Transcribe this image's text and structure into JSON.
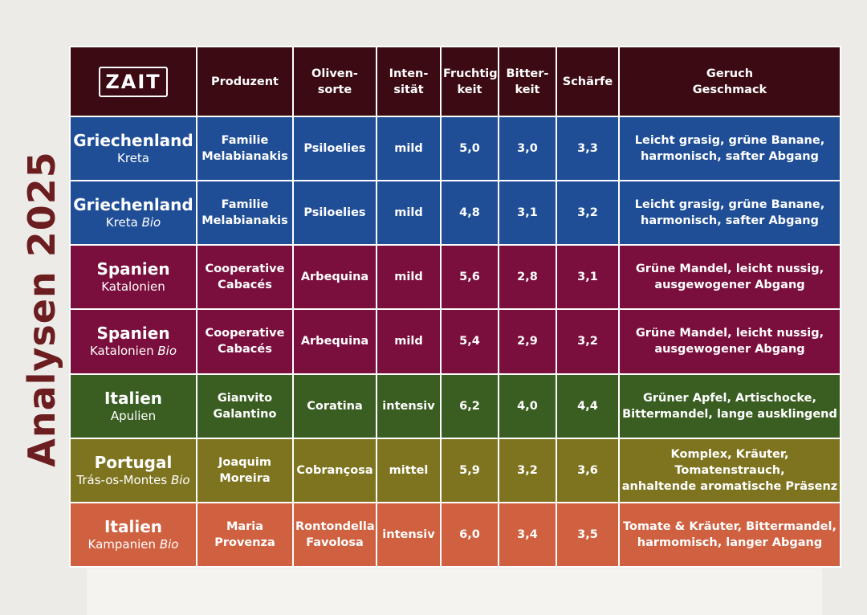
{
  "side_title": "Analysen 2025",
  "logo_text": "ZAIT",
  "headers": [
    {
      "line1": "Produzent",
      "line2": ""
    },
    {
      "line1": "Oliven-",
      "line2": "sorte"
    },
    {
      "line1": "Inten-",
      "line2": "sität"
    },
    {
      "line1": "Fruchtig-",
      "line2": "keit"
    },
    {
      "line1": "Bitter-",
      "line2": "keit"
    },
    {
      "line1": "Schärfe",
      "line2": ""
    },
    {
      "line1": "Geruch",
      "line2": "Geschmack"
    }
  ],
  "rows": [
    {
      "color": "#1f4e97",
      "country": "Griechenland",
      "region": "Kreta",
      "bio": "",
      "producer1": "Familie",
      "producer2": "Melabianakis",
      "olive1": "Psiloelies",
      "olive2": "",
      "intensity": "mild",
      "fruit": "5,0",
      "bitter": "3,0",
      "sharp": "3,3",
      "taste1": "Leicht grasig, grüne Banane,",
      "taste2": "harmonisch, safter Abgang"
    },
    {
      "color": "#1f4e97",
      "country": "Griechenland",
      "region": "Kreta",
      "bio": "Bio",
      "producer1": "Familie",
      "producer2": "Melabianakis",
      "olive1": "Psiloelies",
      "olive2": "",
      "intensity": "mild",
      "fruit": "4,8",
      "bitter": "3,1",
      "sharp": "3,2",
      "taste1": "Leicht grasig, grüne Banane,",
      "taste2": "harmonisch, safter Abgang"
    },
    {
      "color": "#7a0e3c",
      "country": "Spanien",
      "region": "Katalonien",
      "bio": "",
      "producer1": "Cooperative",
      "producer2": "Cabacés",
      "olive1": "Arbequina",
      "olive2": "",
      "intensity": "mild",
      "fruit": "5,6",
      "bitter": "2,8",
      "sharp": "3,1",
      "taste1": "Grüne Mandel, leicht nussig,",
      "taste2": "ausgewogener Abgang"
    },
    {
      "color": "#7a0e3c",
      "country": "Spanien",
      "region": "Katalonien",
      "bio": "Bio",
      "producer1": "Cooperative",
      "producer2": "Cabacés",
      "olive1": "Arbequina",
      "olive2": "",
      "intensity": "mild",
      "fruit": "5,4",
      "bitter": "2,9",
      "sharp": "3,2",
      "taste1": "Grüne Mandel, leicht nussig,",
      "taste2": "ausgewogener Abgang"
    },
    {
      "color": "#3a5e22",
      "country": "Italien",
      "region": "Apulien",
      "bio": "",
      "producer1": "Gianvito",
      "producer2": "Galantino",
      "olive1": "Coratina",
      "olive2": "",
      "intensity": "intensiv",
      "fruit": "6,2",
      "bitter": "4,0",
      "sharp": "4,4",
      "taste1": "Grüner Apfel, Artischocke,",
      "taste2": "Bittermandel, lange ausklingend"
    },
    {
      "color": "#7e7420",
      "country": "Portugal",
      "region": "Trás-os-Montes",
      "bio": "Bio",
      "producer1": "Joaquim",
      "producer2": "Moreira",
      "olive1": "Cobrançosa",
      "olive2": "",
      "intensity": "mittel",
      "fruit": "5,9",
      "bitter": "3,2",
      "sharp": "3,6",
      "taste1": "Komplex, Kräuter, Tomatenstrauch,",
      "taste2": "anhaltende aromatische Präsenz"
    },
    {
      "color": "#cf6040",
      "country": "Italien",
      "region": "Kampanien",
      "bio": "Bio",
      "producer1": "Maria",
      "producer2": "Provenza",
      "olive1": "Rontondella",
      "olive2": "Favolosa",
      "intensity": "intensiv",
      "fruit": "6,0",
      "bitter": "3,4",
      "sharp": "3,5",
      "taste1": "Tomate & Kräuter, Bittermandel,",
      "taste2": "harmomisch, langer Abgang"
    }
  ]
}
